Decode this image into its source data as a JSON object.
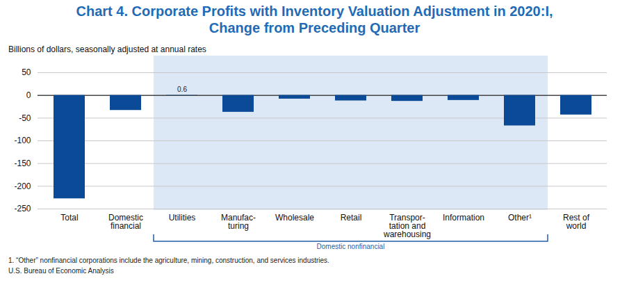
{
  "chart_data": {
    "type": "bar",
    "title": "Chart 4. Corporate Profits with Inventory Valuation Adjustment in 2020:I,\nChange from Preceding Quarter",
    "subtitle": "Billions of dollars, seasonally adjusted at annual rates",
    "categories": [
      "Total",
      "Domestic\nfinancial",
      "Utilities",
      "Manufac-\nturing",
      "Wholesale",
      "Retail",
      "Transpor-\ntation and\nwarehousing",
      "Information",
      "Other¹",
      "Rest of\nworld"
    ],
    "values": [
      -227.5,
      -33,
      0.6,
      -37,
      -8,
      -12,
      -13,
      -11,
      -67,
      -43
    ],
    "value_labels": [
      null,
      null,
      "0.6",
      null,
      null,
      null,
      null,
      null,
      null,
      null
    ],
    "color": "#0a4a97",
    "ylim": [
      -250,
      50
    ],
    "yticks": [
      -250,
      -200,
      -150,
      -100,
      -50,
      0,
      50
    ],
    "grid": true,
    "group": {
      "label": "Domestic nonfinancial",
      "categories": [
        "Utilities",
        "Manufac-\nturing",
        "Wholesale",
        "Retail",
        "Transpor-\ntation and\nwarehousing",
        "Information",
        "Other¹"
      ]
    },
    "footnote": "1. “Other” nonfinancial corporations include the agriculture, mining, construction, and services industries.",
    "source": "U.S. Bureau of Economic Analysis"
  }
}
